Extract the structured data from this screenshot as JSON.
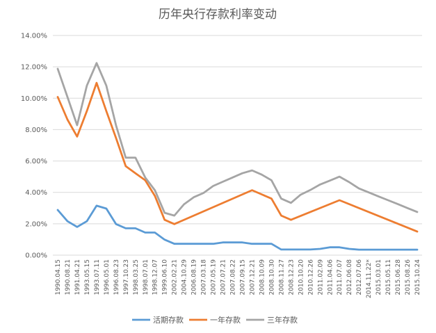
{
  "chart_data": {
    "type": "line",
    "title": "历年央行存款利率变动",
    "xlabel": "",
    "ylabel": "",
    "ylim": [
      0,
      14
    ],
    "y_ticks": [
      "0.00%",
      "2.00%",
      "4.00%",
      "6.00%",
      "8.00%",
      "10.00%",
      "12.00%",
      "14.00%"
    ],
    "grid": true,
    "legend_position": "bottom",
    "categories": [
      "1990.04.15",
      "1990.08.21",
      "1991.04.21",
      "1993.05.15",
      "1993.07.11",
      "1996.05.01",
      "1996.08.23",
      "1997.10.23",
      "1998.03.25",
      "1998.07.01",
      "1998.12.07",
      "1999.06.10",
      "2002.02.21",
      "2004.10.29",
      "2006.08.19",
      "2007.03.18",
      "2007.05.19",
      "2007.07.21",
      "2007.08.22",
      "2007.09.15",
      "2007.12.21",
      "2008.10.09",
      "2008.10.30",
      "2008.11.27",
      "2008.12.23",
      "2010.10.20",
      "2010.12.26",
      "2011.02.09",
      "2011.04.06",
      "2011.07.07",
      "2012.06.08",
      "2012.07.06",
      "2014.11.22*",
      "2015.03.01",
      "2015.05.11",
      "2015.06.28",
      "2015.08.26",
      "2015.10.24"
    ],
    "series": [
      {
        "name": "活期存款",
        "color": "#5B9BD5",
        "values": [
          2.88,
          2.16,
          1.8,
          2.16,
          3.15,
          2.97,
          1.98,
          1.71,
          1.71,
          1.44,
          1.44,
          0.99,
          0.72,
          0.72,
          0.72,
          0.72,
          0.72,
          0.81,
          0.81,
          0.81,
          0.72,
          0.72,
          0.72,
          0.36,
          0.36,
          0.36,
          0.36,
          0.4,
          0.5,
          0.5,
          0.4,
          0.35,
          0.35,
          0.35,
          0.35,
          0.35,
          0.35,
          0.35
        ]
      },
      {
        "name": "一年存款",
        "color": "#ED7D31",
        "values": [
          10.08,
          8.64,
          7.56,
          9.18,
          10.98,
          9.18,
          7.47,
          5.67,
          5.22,
          4.77,
          3.78,
          2.25,
          1.98,
          null,
          null,
          null,
          null,
          null,
          null,
          null,
          4.14,
          3.87,
          3.6,
          2.52,
          2.25,
          null,
          null,
          null,
          null,
          3.5,
          null,
          null,
          null,
          null,
          null,
          null,
          null,
          1.5
        ]
      },
      {
        "name": "三年存款",
        "color": "#A5A5A5",
        "values": [
          11.88,
          10.08,
          8.28,
          10.8,
          12.24,
          10.8,
          8.28,
          6.21,
          6.21,
          4.95,
          4.14,
          2.7,
          2.52,
          3.24,
          3.69,
          3.96,
          4.41,
          4.68,
          4.95,
          5.22,
          5.4,
          5.13,
          4.77,
          3.6,
          3.33,
          3.85,
          4.15,
          4.5,
          4.75,
          5.0,
          4.65,
          4.25,
          4.0,
          3.75,
          3.5,
          3.25,
          3.0,
          2.75
        ]
      }
    ]
  }
}
